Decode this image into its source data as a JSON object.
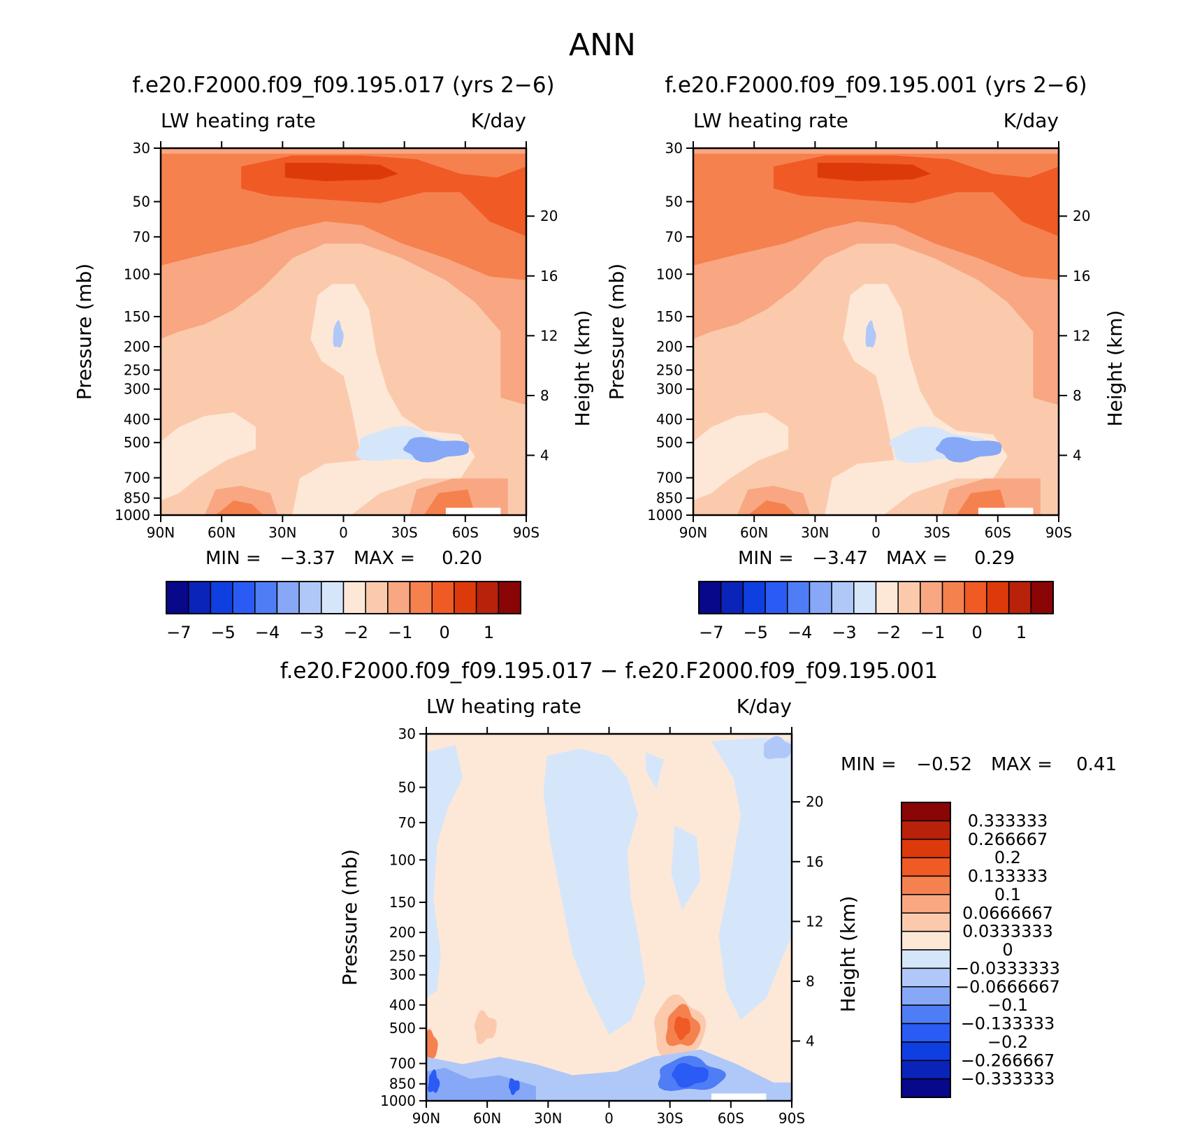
{
  "page": {
    "title": "ANN"
  },
  "colors": {
    "abs_palette": [
      "#08088a",
      "#0a23b8",
      "#0f3fe0",
      "#2a5bf5",
      "#4f7df5",
      "#86a8f7",
      "#b0c8f8",
      "#d6e6fa",
      "#fde8d8",
      "#fbcaad",
      "#f8a782",
      "#f5814f",
      "#f05a25",
      "#dd3a0c",
      "#b8210a",
      "#8a0505"
    ],
    "diff_palette": [
      "#08088a",
      "#0a23b8",
      "#0f3fe0",
      "#2a5bf5",
      "#4f7df5",
      "#86a8f7",
      "#b0c8f8",
      "#d6e6fa",
      "#fde8d8",
      "#fbcaad",
      "#f8a782",
      "#f5814f",
      "#f05a25",
      "#dd3a0c",
      "#b8210a",
      "#8a0505"
    ]
  },
  "panels": [
    {
      "id": "left",
      "title": "f.e20.F2000.f09_f09.195.017 (yrs 2-6)",
      "variable": "LW heating rate",
      "units": "K/day",
      "ylabel": "Pressure (mb)",
      "y2label": "Height (km)",
      "min_label": "MIN =",
      "min_value": "-3.37",
      "max_label": "MAX =",
      "max_value": "0.20",
      "colorbar_ticks": [
        "-7",
        "-5",
        "-4",
        "-3",
        "-2",
        "-1",
        "0",
        "1"
      ]
    },
    {
      "id": "right",
      "title": "f.e20.F2000.f09_f09.195.001 (yrs 2-6)",
      "variable": "LW heating rate",
      "units": "K/day",
      "ylabel": "Pressure (mb)",
      "y2label": "Height (km)",
      "min_label": "MIN =",
      "min_value": "-3.47",
      "max_label": "MAX =",
      "max_value": "0.29",
      "colorbar_ticks": [
        "-7",
        "-5",
        "-4",
        "-3",
        "-2",
        "-1",
        "0",
        "1"
      ]
    },
    {
      "id": "diff",
      "title": "f.e20.F2000.f09_f09.195.017 - f.e20.F2000.f09_f09.195.001",
      "variable": "LW heating rate",
      "units": "K/day",
      "ylabel": "Pressure (mb)",
      "y2label": "Height (km)",
      "min_label": "MIN =",
      "min_value": "-0.52",
      "max_label": "MAX =",
      "max_value": "0.41",
      "colorbar_ticks": [
        "0.333333",
        "0.266667",
        "0.2",
        "0.133333",
        "0.1",
        "0.0666667",
        "0.0333333",
        "0",
        "-0.0333333",
        "-0.0666667",
        "-0.1",
        "-0.133333",
        "-0.2",
        "-0.266667",
        "-0.333333"
      ]
    }
  ],
  "chart_data": [
    {
      "type": "heatmap",
      "title": "f.e20.F2000.f09_f09.195.017 (yrs 2-6)",
      "subtitle": "LW heating rate",
      "units": "K/day",
      "x_ticks": [
        "90N",
        "60N",
        "30N",
        "0",
        "30S",
        "60S",
        "90S"
      ],
      "y_ticks_pressure": [
        "30",
        "50",
        "70",
        "100",
        "150",
        "200",
        "250",
        "300",
        "400",
        "500",
        "700",
        "850",
        "1000"
      ],
      "y_ticks_height": [
        "20",
        "16",
        "12",
        "8",
        "4"
      ],
      "xlabel": "",
      "ylabel": "Pressure (mb)",
      "y2label": "Height (km)",
      "min": -3.37,
      "max": 0.2,
      "levels": [
        -7,
        -6,
        -5,
        -4.5,
        -4,
        -3.5,
        -3,
        -2.5,
        -2,
        -1.5,
        -1,
        -0.5,
        0,
        0.5,
        1
      ]
    },
    {
      "type": "heatmap",
      "title": "f.e20.F2000.f09_f09.195.001 (yrs 2-6)",
      "subtitle": "LW heating rate",
      "units": "K/day",
      "x_ticks": [
        "90N",
        "60N",
        "30N",
        "0",
        "30S",
        "60S",
        "90S"
      ],
      "y_ticks_pressure": [
        "30",
        "50",
        "70",
        "100",
        "150",
        "200",
        "250",
        "300",
        "400",
        "500",
        "700",
        "850",
        "1000"
      ],
      "y_ticks_height": [
        "20",
        "16",
        "12",
        "8",
        "4"
      ],
      "xlabel": "",
      "ylabel": "Pressure (mb)",
      "y2label": "Height (km)",
      "min": -3.47,
      "max": 0.29,
      "levels": [
        -7,
        -6,
        -5,
        -4.5,
        -4,
        -3.5,
        -3,
        -2.5,
        -2,
        -1.5,
        -1,
        -0.5,
        0,
        0.5,
        1
      ]
    },
    {
      "type": "heatmap",
      "title": "f.e20.F2000.f09_f09.195.017 - f.e20.F2000.f09_f09.195.001",
      "subtitle": "LW heating rate",
      "units": "K/day",
      "x_ticks": [
        "90N",
        "60N",
        "30N",
        "0",
        "30S",
        "60S",
        "90S"
      ],
      "y_ticks_pressure": [
        "30",
        "50",
        "70",
        "100",
        "150",
        "200",
        "250",
        "300",
        "400",
        "500",
        "700",
        "850",
        "1000"
      ],
      "y_ticks_height": [
        "20",
        "16",
        "12",
        "8",
        "4"
      ],
      "xlabel": "",
      "ylabel": "Pressure (mb)",
      "y2label": "Height (km)",
      "min": -0.52,
      "max": 0.41,
      "levels": [
        -0.333333,
        -0.266667,
        -0.2,
        -0.133333,
        -0.1,
        -0.0666667,
        -0.0333333,
        0,
        0.0333333,
        0.0666667,
        0.1,
        0.133333,
        0.2,
        0.266667,
        0.333333
      ]
    }
  ]
}
